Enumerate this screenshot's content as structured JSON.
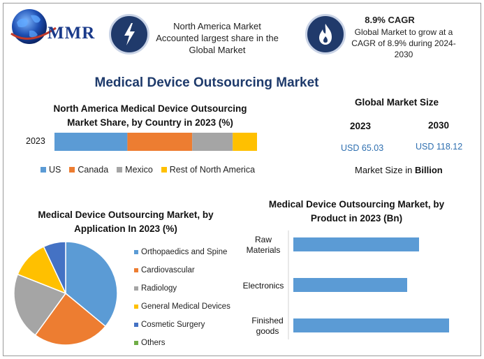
{
  "logo": {
    "text": "MMR"
  },
  "header": {
    "left_box": {
      "icon": "lightning-icon",
      "text": "North America Market Accounted largest share in the Global Market"
    },
    "right_box": {
      "icon": "flame-icon",
      "headline": "8.9% CAGR",
      "text": "Global Market to grow at a CAGR of 8.9% during 2024-2030"
    }
  },
  "main_title": "Medical Device Outsourcing Market",
  "market_size": {
    "title": "Global Market Size",
    "year1": "2023",
    "year2": "2030",
    "value1": "USD 65.03",
    "value2": "USD 118.12",
    "unit_prefix": "Market Size in",
    "unit_bold": "Billion"
  },
  "colors": {
    "blue": "#5b9bd5",
    "orange": "#ed7d31",
    "gray": "#a5a5a5",
    "yellow": "#ffc000",
    "darkblue": "#4472c4",
    "green": "#70ad47",
    "title": "#1e3a6b"
  },
  "chart_data": [
    {
      "type": "bar",
      "orientation": "horizontal-stacked",
      "title": "North America Medical Device Outsourcing Market Share, by Country in 2023 (%)",
      "categories": [
        "2023"
      ],
      "series": [
        {
          "name": "US",
          "values": [
            36
          ]
        },
        {
          "name": "Canada",
          "values": [
            32
          ]
        },
        {
          "name": "Mexico",
          "values": [
            20
          ]
        },
        {
          "name": "Rest of North America",
          "values": [
            12
          ]
        }
      ],
      "legend": "bottom"
    },
    {
      "type": "pie",
      "title": "Medical Device Outsourcing Market, by Application In 2023 (%)",
      "labels": [
        "Orthopaedics and Spine",
        "Cardiovascular",
        "Radiology",
        "General Medical Devices",
        "Cosmetic Surgery",
        "Others"
      ],
      "values": [
        36,
        24,
        21,
        12,
        7,
        0
      ],
      "legend": "right"
    },
    {
      "type": "bar",
      "orientation": "horizontal",
      "title": "Medical Device Outsourcing Market, by Product in 2023 (Bn)",
      "categories": [
        "Raw Materials",
        "Electronics",
        "Finished goods"
      ],
      "values": [
        18,
        16.3,
        22.3
      ]
    }
  ]
}
